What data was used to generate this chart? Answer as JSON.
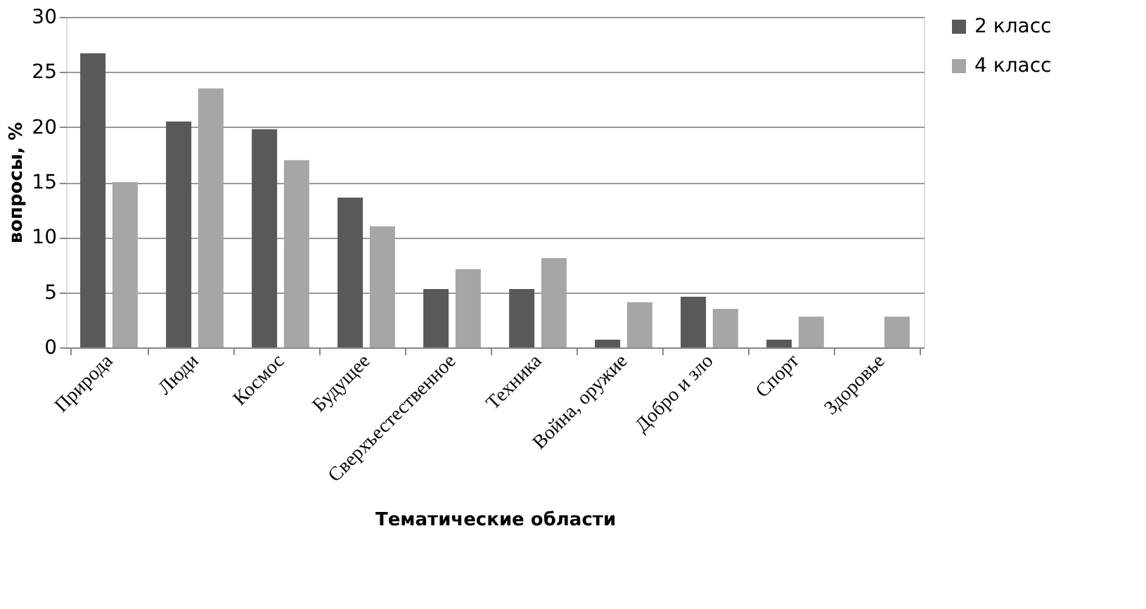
{
  "chart_data": {
    "type": "bar",
    "xlabel": "Тематические области",
    "ylabel": "вопросы, %",
    "categories": [
      "Природа",
      "Люди",
      "Космос",
      "Будущее",
      "Сверхъестественное",
      "Техника",
      "Война, оружие",
      "Добро и зло",
      "Спорт",
      "Здоровье"
    ],
    "series": [
      {
        "name": "2 класс",
        "color": "#595959",
        "values": [
          26.7,
          20.5,
          19.8,
          13.6,
          5.3,
          5.3,
          0.7,
          4.6,
          0.7,
          null
        ]
      },
      {
        "name": "4 класс",
        "color": "#a6a6a6",
        "values": [
          15,
          23.5,
          17,
          11,
          7.1,
          8.1,
          4.1,
          3.5,
          2.8,
          2.8
        ]
      }
    ],
    "ylim": [
      0,
      30
    ],
    "yticks": [
      0,
      5,
      10,
      15,
      20,
      25,
      30
    ],
    "grid": "y",
    "legend": "right"
  }
}
